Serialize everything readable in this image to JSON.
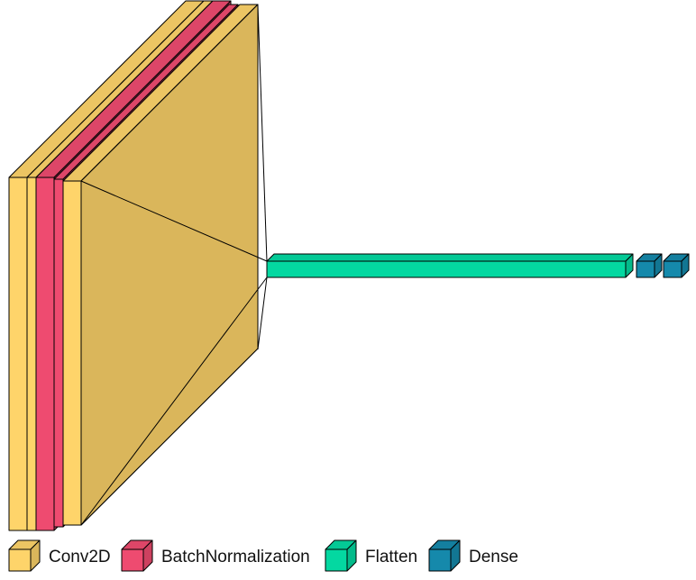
{
  "layers": [
    {
      "type": "Conv2D"
    },
    {
      "type": "Conv2D"
    },
    {
      "type": "BatchNormalization"
    },
    {
      "type": "BatchNormalization"
    },
    {
      "type": "Conv2D"
    },
    {
      "type": "Conv2D"
    },
    {
      "type": "Flatten"
    },
    {
      "type": "Dense"
    },
    {
      "type": "Dense"
    }
  ],
  "legend": [
    {
      "label": "Conv2D",
      "color": "#fed46a"
    },
    {
      "label": "BatchNormalization",
      "color": "#ee4b70"
    },
    {
      "label": "Flatten",
      "color": "#04d8a1"
    },
    {
      "label": "Dense",
      "color": "#1589ab"
    }
  ]
}
